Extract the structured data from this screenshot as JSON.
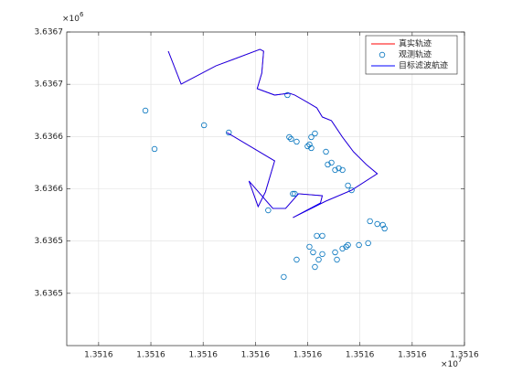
{
  "chart_data": {
    "type": "line",
    "xlim": [
      1.3515689,
      1.351645
    ],
    "ylim": [
      3.636455,
      3.636725
    ],
    "xticks": [
      {
        "value": 1.351575,
        "label": "1.3516"
      },
      {
        "value": 1.351585,
        "label": "1.3516"
      },
      {
        "value": 1.351595,
        "label": "1.3516"
      },
      {
        "value": 1.351605,
        "label": "1.3516"
      },
      {
        "value": 1.351615,
        "label": "1.3516"
      },
      {
        "value": 1.351625,
        "label": "1.3516"
      },
      {
        "value": 1.351635,
        "label": "1.3516"
      },
      {
        "value": 1.351645,
        "label": "1.3516"
      }
    ],
    "yticks": [
      {
        "value": 3.636725,
        "label": "3.6367"
      },
      {
        "value": 3.63668,
        "label": "3.6367"
      },
      {
        "value": 3.636635,
        "label": "3.6366"
      },
      {
        "value": 3.63659,
        "label": "3.6366"
      },
      {
        "value": 3.636545,
        "label": "3.6365"
      },
      {
        "value": 3.6365,
        "label": "3.6365"
      }
    ],
    "x_multiplier": "×10",
    "x_power": "7",
    "y_multiplier": "×10",
    "y_power": "6",
    "grid": true,
    "legend_location": "northeast",
    "series": [
      {
        "name": "真实轨迹",
        "mark": "line",
        "color": "#ff0000",
        "x": [
          1.35158833,
          1.35159079,
          1.35159745,
          1.35160587,
          1.35160657,
          1.35160622,
          1.35160534,
          1.35160868,
          1.35161148,
          1.35161254,
          1.35161499,
          1.35161675,
          1.3516178,
          1.35161955,
          1.35162166,
          1.35162376,
          1.35162622,
          1.35162832,
          1.35162341,
          1.3516185,
          1.35161218,
          1.35161745,
          1.3516178,
          1.35161324,
          1.35161078,
          1.35160833,
          1.35160377,
          1.35160552,
          1.35160692,
          1.35160868,
          1.35159956
        ],
        "y": [
          3.63670847,
          3.63668014,
          3.63669588,
          3.63671005,
          3.63670847,
          3.63668958,
          3.63667621,
          3.6366707,
          3.63667227,
          3.6366707,
          3.6366644,
          3.63665968,
          3.63665181,
          3.63664866,
          3.6366345,
          3.6366219,
          3.6366109,
          3.636603,
          3.6365888,
          3.6365794,
          3.6365652,
          3.6365778,
          3.6365841,
          3.6365857,
          3.6365731,
          3.6365731,
          3.6365967,
          3.6365747,
          3.6365873,
          3.636614,
          3.63663843
        ]
      },
      {
        "name": "观测轨迹",
        "mark": "scatter",
        "color": "#0072bd",
        "x": [
          1.35158395,
          1.3515857,
          1.35159517,
          1.35159991,
          1.35161113,
          1.35161148,
          1.35161183,
          1.35160745,
          1.35161218,
          1.35161289,
          1.35161499,
          1.35161569,
          1.35161639,
          1.35161534,
          1.35161569,
          1.3516185,
          1.35161885,
          1.35161955,
          1.35162025,
          1.35162095,
          1.35162166,
          1.35162271,
          1.35162341,
          1.35161254,
          1.35161675,
          1.3516178,
          1.35162692,
          1.35162832,
          1.35162937,
          1.35162972,
          1.35161534,
          1.35161604,
          1.3516178,
          1.3516171,
          1.35161289,
          1.35161639,
          1.35162025,
          1.3516206,
          1.35162166,
          1.35162236,
          1.35162271,
          1.35162481,
          1.35162657,
          1.35161043
        ],
        "y": [
          3.63665732,
          3.63662426,
          3.63664473,
          3.63663843,
          3.6366707,
          3.6366345,
          3.63663292,
          3.6365715,
          3.6365857,
          3.63663056,
          3.63662662,
          3.6366345,
          3.63663764,
          3.6366282,
          3.63662505,
          3.6366219,
          3.6366109,
          3.6366125,
          3.6366062,
          3.6366077,
          3.6366062,
          3.6365928,
          3.6365888,
          3.6365857,
          3.6365495,
          3.6365495,
          3.6365621,
          3.6365597,
          3.6365589,
          3.6365558,
          3.6365401,
          3.6365353,
          3.6365338,
          3.636529,
          3.636529,
          3.6365227,
          3.6365353,
          3.636529,
          3.6365385,
          3.6365401,
          3.6365416,
          3.6365416,
          3.6365432,
          3.6365141
        ]
      },
      {
        "name": "目标滤波航迹",
        "mark": "line",
        "color": "#0000ff",
        "x": [
          1.35158833,
          1.35159079,
          1.35159745,
          1.35160587,
          1.35160657,
          1.35160622,
          1.35160534,
          1.35160868,
          1.35161148,
          1.35161254,
          1.35161499,
          1.35161675,
          1.3516178,
          1.35161955,
          1.35162166,
          1.35162376,
          1.35162622,
          1.35162832,
          1.35162341,
          1.3516185,
          1.35161218,
          1.35161745,
          1.3516178,
          1.35161324,
          1.35161078,
          1.35160833,
          1.35160377,
          1.35160552,
          1.35160692,
          1.35160868,
          1.35159956
        ],
        "y": [
          3.63670847,
          3.63668014,
          3.63669588,
          3.63671005,
          3.63670847,
          3.63668958,
          3.63667621,
          3.6366707,
          3.63667227,
          3.6366707,
          3.6366644,
          3.63665968,
          3.63665181,
          3.63664866,
          3.6366345,
          3.6366219,
          3.6366109,
          3.636603,
          3.6365888,
          3.6365794,
          3.6365652,
          3.6365778,
          3.6365841,
          3.6365857,
          3.6365731,
          3.6365731,
          3.6365967,
          3.6365747,
          3.6365873,
          3.636614,
          3.63663843
        ]
      }
    ]
  }
}
